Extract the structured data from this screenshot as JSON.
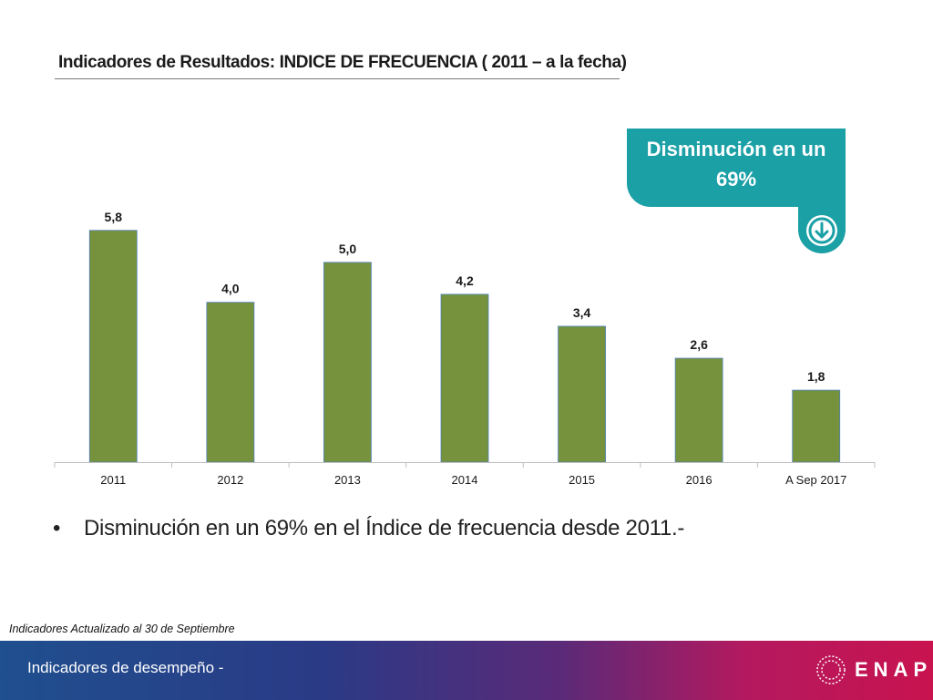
{
  "slide": {
    "title": "Indicadores de Resultados: INDICE DE FRECUENCIA  ( 2011 – a la fecha)",
    "callout": {
      "line1": "Disminución en un",
      "line2": "69%",
      "icon": "arrow-down-circle-icon",
      "color": "#1ba0a6"
    },
    "bullet": "Disminución en un 69% en el Índice de frecuencia desde 2011.-",
    "note": "Indicadores Actualizado al 30 de Septiembre",
    "footer": {
      "text": "Indicadores de desempeño -",
      "logo": "ENAP"
    }
  },
  "chart_data": {
    "type": "bar",
    "title": "Indicadores de Resultados: INDICE DE FRECUENCIA  ( 2011 – a la fecha)",
    "categories": [
      "2011",
      "2012",
      "2013",
      "2014",
      "2015",
      "2016",
      "A Sep 2017"
    ],
    "values": [
      5.8,
      4.0,
      5.0,
      4.2,
      3.4,
      2.6,
      1.8
    ],
    "data_labels": [
      "5,8",
      "4,0",
      "5,0",
      "4,2",
      "3,4",
      "2,6",
      "1,8"
    ],
    "xlabel": "",
    "ylabel": "",
    "ylim": [
      0,
      7.3
    ],
    "grid": false,
    "bar_color": "#76923c"
  }
}
